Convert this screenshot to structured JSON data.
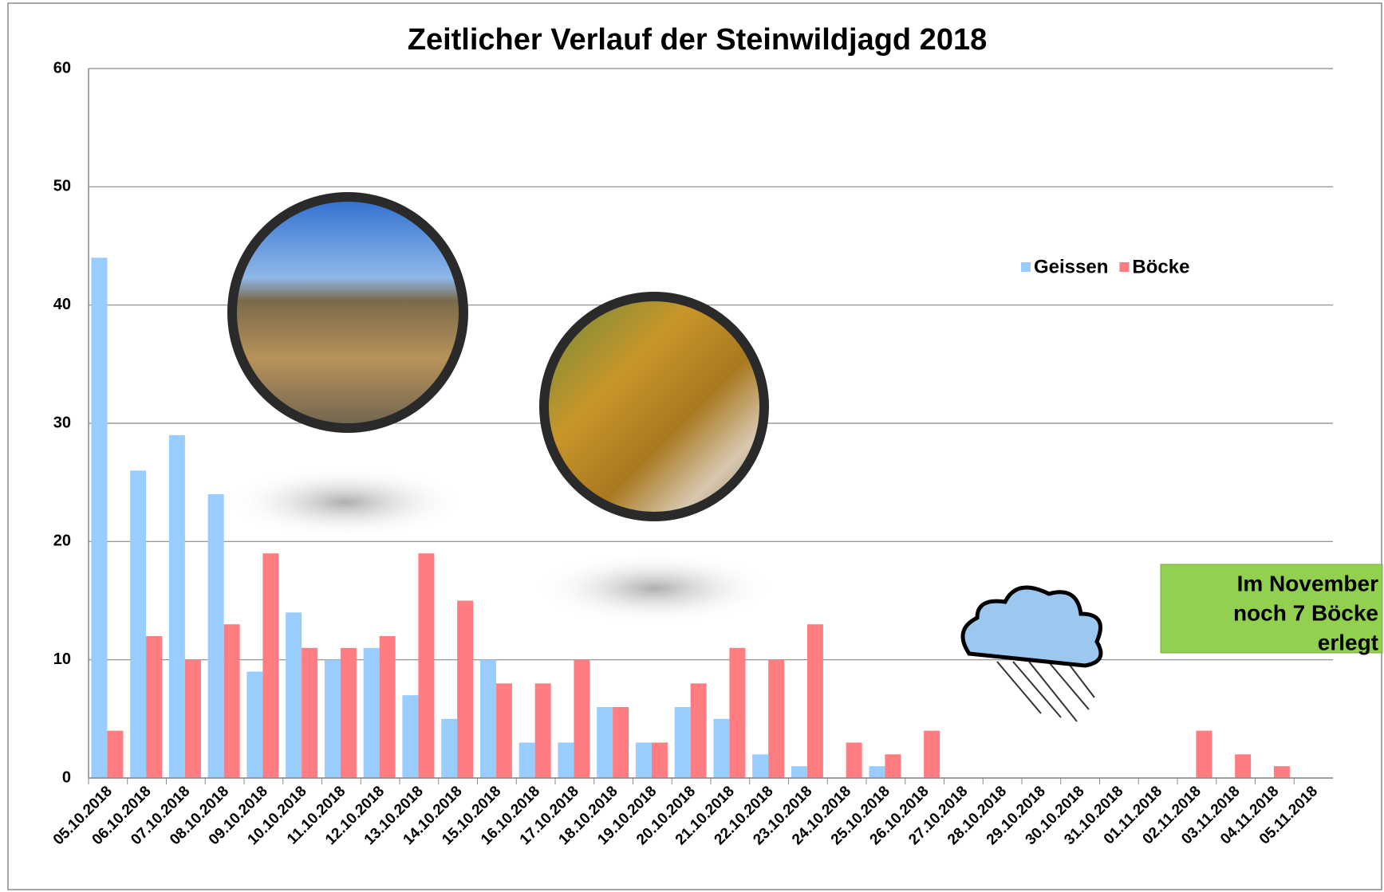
{
  "chart_data": {
    "type": "bar",
    "title": "Zeitlicher Verlauf der Steinwildjagd 2018",
    "categories": [
      "05.10.2018",
      "06.10.2018",
      "07.10.2018",
      "08.10.2018",
      "09.10.2018",
      "10.10.2018",
      "11.10.2018",
      "12.10.2018",
      "13.10.2018",
      "14.10.2018",
      "15.10.2018",
      "16.10.2018",
      "17.10.2018",
      "18.10.2018",
      "19.10.2018",
      "20.10.2018",
      "21.10.2018",
      "22.10.2018",
      "23.10.2018",
      "24.10.2018",
      "25.10.2018",
      "26.10.2018",
      "27.10.2018",
      "28.10.2018",
      "29.10.2018",
      "30.10.2018",
      "31.10.2018",
      "01.11.2018",
      "02.11.2018",
      "03.11.2018",
      "04.11.2018",
      "05.11.2018"
    ],
    "series": [
      {
        "name": "Geissen",
        "color": "#99ccff",
        "values": [
          44,
          26,
          29,
          24,
          9,
          14,
          10,
          11,
          7,
          5,
          10,
          3,
          3,
          6,
          3,
          6,
          5,
          2,
          1,
          0,
          1,
          0,
          0,
          0,
          0,
          0,
          0,
          0,
          0,
          0,
          0,
          0
        ]
      },
      {
        "name": "Böcke",
        "color": "#ff7c80",
        "values": [
          4,
          12,
          10,
          13,
          19,
          11,
          11,
          12,
          19,
          15,
          8,
          8,
          10,
          6,
          3,
          8,
          11,
          10,
          13,
          3,
          2,
          4,
          0,
          0,
          0,
          0,
          0,
          0,
          4,
          2,
          1,
          0
        ]
      }
    ],
    "ylim": [
      0,
      60
    ],
    "yticks": [
      0,
      10,
      20,
      30,
      40,
      50,
      60
    ],
    "grid": true,
    "annotation": [
      "Im November",
      "noch 7 Böcke",
      "erlegt"
    ]
  }
}
